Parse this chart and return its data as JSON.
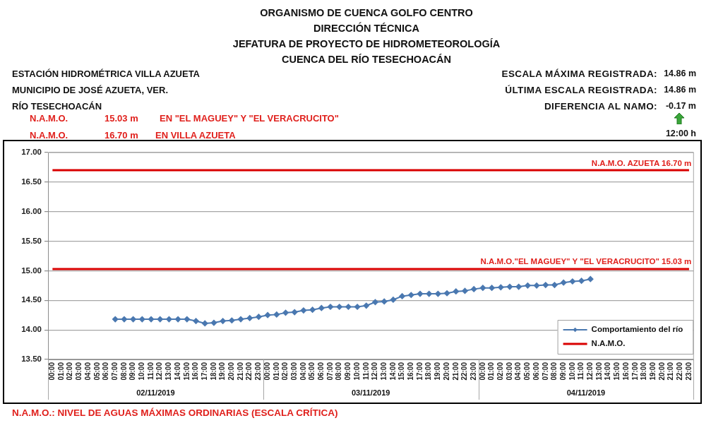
{
  "chart_data": {
    "type": "line",
    "title": "ORGANISMO DE CUENCA GOLFO CENTRO",
    "subtitle": "DIRECCIÓN TÉCNICA\nJEFATURA DE PROYECTO DE HIDROMETEOROLOGÍA\nCUENCA DEL RÍO TESECHOACÁN",
    "categories": [
      "00:00",
      "01:00",
      "02:00",
      "03:00",
      "04:00",
      "05:00",
      "06:00",
      "07:00",
      "08:00",
      "09:00",
      "10:00",
      "11:00",
      "12:00",
      "13:00",
      "14:00",
      "15:00",
      "16:00",
      "17:00",
      "18:00",
      "19:00",
      "20:00",
      "21:00",
      "22:00",
      "23:00",
      "00:00",
      "01:00",
      "02:00",
      "03:00",
      "04:00",
      "05:00",
      "06:00",
      "07:00",
      "08:00",
      "09:00",
      "10:00",
      "11:00",
      "12:00",
      "13:00",
      "14:00",
      "15:00",
      "16:00",
      "17:00",
      "18:00",
      "19:00",
      "20:00",
      "21:00",
      "22:00",
      "23:00",
      "00:00",
      "01:00",
      "02:00",
      "03:00",
      "04:00",
      "05:00",
      "06:00",
      "07:00",
      "08:00",
      "09:00",
      "10:00",
      "11:00",
      "12:00",
      "13:00",
      "14:00",
      "15:00",
      "16:00",
      "17:00",
      "18:00",
      "19:00",
      "20:00",
      "21:00",
      "22:00",
      "23:00"
    ],
    "series": [
      {
        "name": "Comportamiento del río",
        "color": "#4a78b0",
        "values": [
          null,
          null,
          null,
          null,
          null,
          null,
          null,
          14.18,
          14.18,
          14.18,
          14.18,
          14.18,
          14.18,
          14.18,
          14.18,
          14.18,
          14.15,
          14.11,
          14.12,
          14.15,
          14.16,
          14.18,
          14.2,
          14.22,
          14.25,
          14.26,
          14.29,
          14.3,
          14.33,
          14.34,
          14.37,
          14.39,
          14.39,
          14.39,
          14.39,
          14.41,
          14.47,
          14.48,
          14.51,
          14.57,
          14.59,
          14.61,
          14.61,
          14.61,
          14.62,
          14.65,
          14.66,
          14.69,
          14.71,
          14.71,
          14.72,
          14.73,
          14.73,
          14.75,
          14.75,
          14.76,
          14.76,
          14.8,
          14.82,
          14.83,
          14.86,
          null,
          null,
          null,
          null,
          null,
          null,
          null,
          null,
          null,
          null,
          null
        ]
      },
      {
        "name": "N.A.M.O.",
        "color": "#d90000",
        "marker": "none",
        "values": [
          16.7,
          16.7,
          16.7,
          16.7,
          16.7,
          16.7,
          16.7,
          16.7,
          16.7,
          16.7,
          16.7,
          16.7,
          16.7,
          16.7,
          16.7,
          16.7,
          16.7,
          16.7,
          16.7,
          16.7,
          16.7,
          16.7,
          16.7,
          16.7,
          16.7,
          16.7,
          16.7,
          16.7,
          16.7,
          16.7,
          16.7,
          16.7,
          16.7,
          16.7,
          16.7,
          16.7,
          16.7,
          16.7,
          16.7,
          16.7,
          16.7,
          16.7,
          16.7,
          16.7,
          16.7,
          16.7,
          16.7,
          16.7,
          16.7,
          16.7,
          16.7,
          16.7,
          16.7,
          16.7,
          16.7,
          16.7,
          16.7,
          16.7,
          16.7,
          16.7,
          16.7,
          16.7,
          16.7,
          16.7,
          16.7,
          16.7,
          16.7,
          16.7,
          16.7,
          16.7,
          16.7,
          16.7
        ]
      },
      {
        "color": "#d90000",
        "marker": "none",
        "values": [
          15.03,
          15.03,
          15.03,
          15.03,
          15.03,
          15.03,
          15.03,
          15.03,
          15.03,
          15.03,
          15.03,
          15.03,
          15.03,
          15.03,
          15.03,
          15.03,
          15.03,
          15.03,
          15.03,
          15.03,
          15.03,
          15.03,
          15.03,
          15.03,
          15.03,
          15.03,
          15.03,
          15.03,
          15.03,
          15.03,
          15.03,
          15.03,
          15.03,
          15.03,
          15.03,
          15.03,
          15.03,
          15.03,
          15.03,
          15.03,
          15.03,
          15.03,
          15.03,
          15.03,
          15.03,
          15.03,
          15.03,
          15.03,
          15.03,
          15.03,
          15.03,
          15.03,
          15.03,
          15.03,
          15.03,
          15.03,
          15.03,
          15.03,
          15.03,
          15.03,
          15.03,
          15.03,
          15.03,
          15.03,
          15.03,
          15.03,
          15.03,
          15.03,
          15.03,
          15.03,
          15.03,
          15.03
        ]
      }
    ],
    "ylim": [
      13.5,
      17
    ],
    "yticks": [
      {
        "value": 13.5,
        "label": "13.50"
      },
      {
        "value": 14,
        "label": "14.00"
      },
      {
        "value": 14.5,
        "label": "14.50"
      },
      {
        "value": 15,
        "label": "15.00"
      },
      {
        "value": 15.5,
        "label": "15.50"
      },
      {
        "value": 16,
        "label": "16.00"
      },
      {
        "value": 16.5,
        "label": "16.50"
      },
      {
        "value": 17,
        "label": "17.00"
      }
    ],
    "grid": "y",
    "legend": "bottom right",
    "marker": "diamond",
    "line_style": "solid",
    "annotations": [
      "ESTACIÓN HIDROMÉTRICA VILLA AZUETA",
      "MUNICIPIO DE JOSÉ AZUETA, VER.",
      "RÍO TESECHOACÁN",
      "N.A.M.O.",
      "15.03 m",
      "EN \"EL MAGUEY\" Y \"EL VERACRUCITO\"",
      "N.A.M.O.",
      "16.70 m",
      "EN VILLA AZUETA",
      "ESCALA MÁXIMA REGISTRADA:",
      "14.86 m",
      "ÚLTIMA ESCALA REGISTRADA:",
      "14.86 m",
      "DIFERENCIA AL NAMO:",
      "-0.17 m",
      "12:00 h",
      "02/11/2019",
      "03/11/2019",
      "04/11/2019",
      "N.A.M.O.: NIVEL DE AGUAS MÁXIMAS ORDINARIAS (ESCALA CRÍTICA)",
      {
        "text": "N.A.M.O. AZUETA 16.70 m",
        "y": 16.7
      },
      {
        "text": "N.A.M.O.\"EL MAGUEY\" Y \"EL VERACRUCITO\" 15.03 m",
        "y": 15.03
      }
    ]
  }
}
